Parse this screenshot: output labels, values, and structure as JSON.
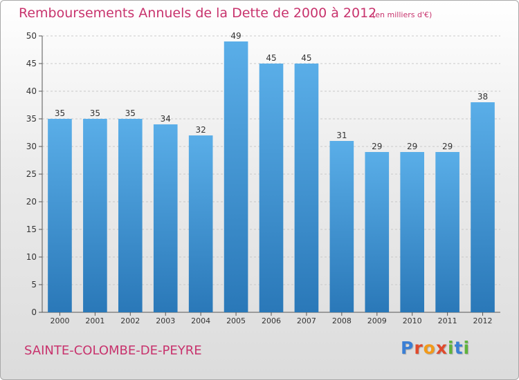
{
  "header": {
    "title": "Remboursements Annuels de la Dette de 2000 à 2012",
    "unit_note": "(en milliers d'€)"
  },
  "footer": {
    "commune": "SAINTE-COLOMBE-DE-PEYRE",
    "brand_letters": [
      "P",
      "r",
      "o",
      "x",
      "i",
      "t",
      "i"
    ],
    "brand_colors": [
      "#3a7fd5",
      "#e04a2c",
      "#f29a1a",
      "#e04a2c",
      "#5fb33b",
      "#3a7fd5",
      "#5fb33b"
    ]
  },
  "colors": {
    "accent": "#c8336d",
    "bar_top": "#5aaee8",
    "bar_bottom": "#2a78b8"
  },
  "chart_data": {
    "type": "bar",
    "title": "Remboursements Annuels de la Dette de 2000 à 2012",
    "categories": [
      "2000",
      "2001",
      "2002",
      "2003",
      "2004",
      "2005",
      "2006",
      "2007",
      "2008",
      "2009",
      "2010",
      "2011",
      "2012"
    ],
    "values": [
      35,
      35,
      35,
      34,
      32,
      49,
      45,
      45,
      31,
      29,
      29,
      29,
      38
    ],
    "ylim": [
      0,
      50
    ],
    "yticks": [
      0,
      5,
      10,
      15,
      20,
      25,
      30,
      35,
      40,
      45,
      50
    ],
    "grid": true,
    "data_labels": true
  }
}
